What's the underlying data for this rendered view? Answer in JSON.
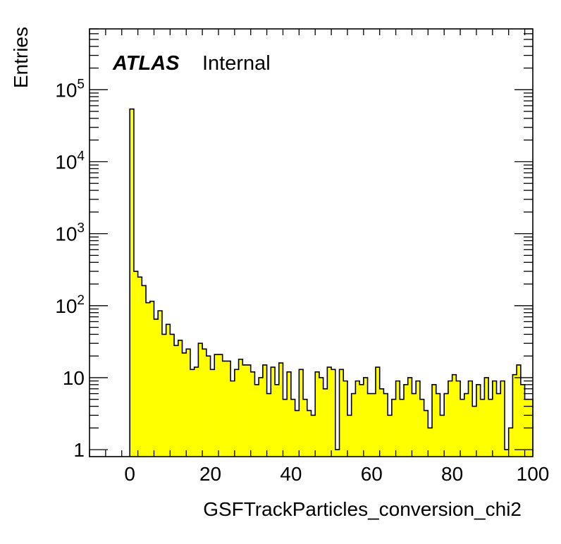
{
  "chart_data": {
    "type": "bar",
    "subtype": "histogram",
    "label_bold": "ATLAS",
    "label_status": "Internal",
    "xlabel": "GSFTrackParticles_conversion_chi2",
    "ylabel": "Entries",
    "x_range": [
      -10,
      100
    ],
    "y_range": [
      0.8,
      700000
    ],
    "y_scale": "log",
    "x_ticks": [
      "0",
      "20",
      "40",
      "60",
      "80",
      "100"
    ],
    "y_ticks": [
      {
        "base": "1",
        "exp": ""
      },
      {
        "base": "10",
        "exp": ""
      },
      {
        "base": "10",
        "exp": "2"
      },
      {
        "base": "10",
        "exp": "3"
      },
      {
        "base": "10",
        "exp": "4"
      },
      {
        "base": "10",
        "exp": "5"
      }
    ],
    "fill_color": "#ffff00",
    "line_color": "#000000",
    "grid": false,
    "bin_width": 1,
    "x_start": 0,
    "values": [
      54000,
      300,
      250,
      190,
      110,
      115,
      65,
      85,
      40,
      55,
      40,
      28,
      33,
      22,
      25,
      13,
      14,
      30,
      25,
      20,
      13,
      21,
      21,
      17,
      17,
      9,
      13,
      18,
      15,
      15,
      12,
      8,
      10,
      15,
      6,
      14,
      8,
      16,
      5,
      12,
      5,
      3.5,
      13,
      5,
      3.5,
      3,
      12,
      10,
      7,
      14,
      13,
      1,
      13,
      9,
      3,
      6,
      9,
      8,
      10,
      6,
      6,
      14,
      7,
      6,
      3,
      5,
      9,
      5,
      8,
      10,
      6,
      9,
      5,
      3.5,
      2,
      8,
      6,
      3,
      6,
      9,
      11,
      9,
      5,
      6,
      9,
      4,
      8,
      5,
      10,
      5,
      9,
      6,
      9,
      1,
      2,
      11,
      15,
      8,
      5,
      5
    ]
  }
}
